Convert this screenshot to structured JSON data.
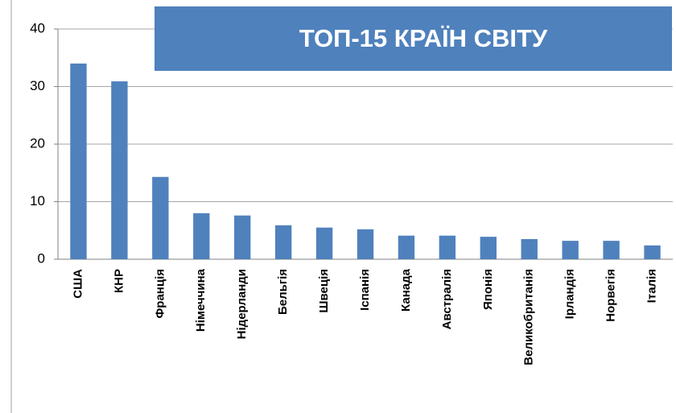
{
  "chart_data": {
    "type": "bar",
    "title": "ТОП-15 КРАЇН СВІТУ",
    "categories": [
      "США",
      "КНР",
      "Франція",
      "Німеччина",
      "Нідерланди",
      "Бельгія",
      "Швеція",
      "Іспанія",
      "Канада",
      "Австралія",
      "Японія",
      "Великобританія",
      "Ірландія",
      "Норвегія",
      "Італія"
    ],
    "values": [
      34,
      30.9,
      14.3,
      8,
      7.6,
      5.9,
      5.5,
      5.2,
      4.1,
      4.1,
      3.9,
      3.5,
      3.2,
      3.2,
      2.4
    ],
    "color": "#4f81bd",
    "ylim": [
      0,
      40
    ],
    "yticks": [
      0,
      10,
      20,
      30,
      40
    ],
    "grid": true
  }
}
